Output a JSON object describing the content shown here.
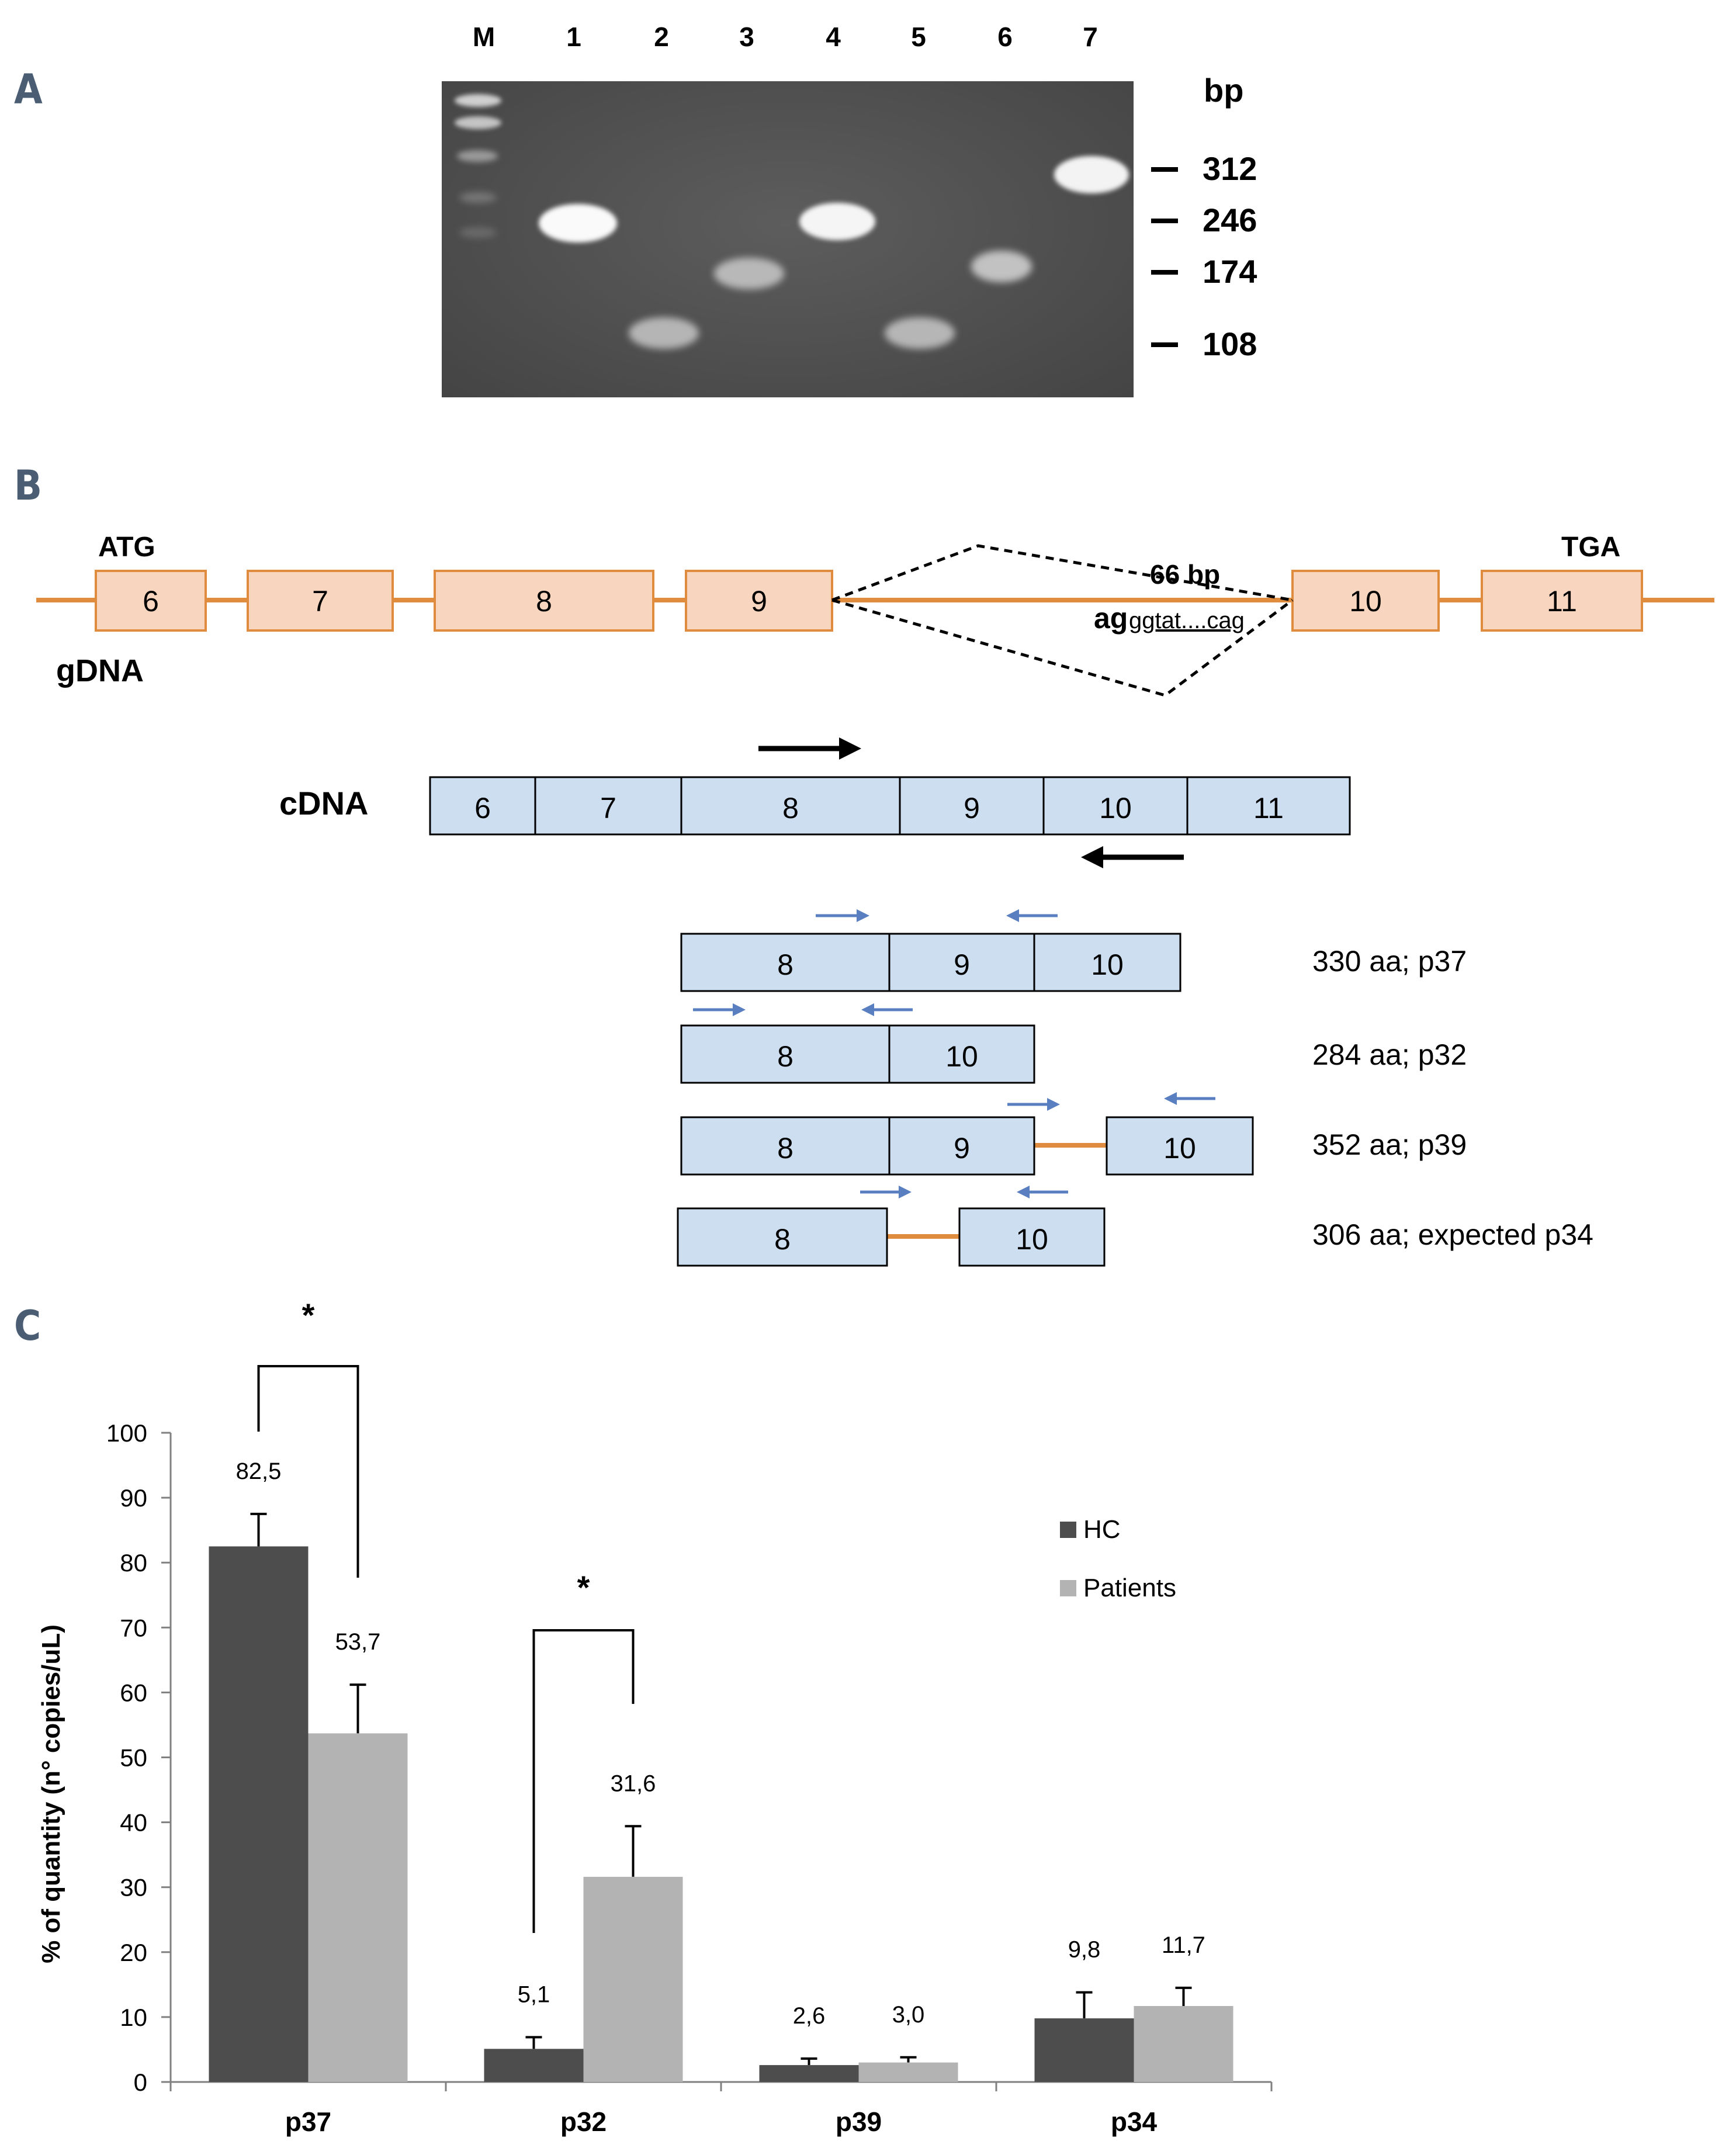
{
  "panels": {
    "a": "A",
    "b": "B",
    "c": "C"
  },
  "gel": {
    "lanes": [
      "M",
      "1",
      "2",
      "3",
      "4",
      "5",
      "6",
      "7"
    ],
    "bp_header": "bp",
    "markers": [
      "312",
      "246",
      "174",
      "108"
    ]
  },
  "gene": {
    "atg": "ATG",
    "tga": "TGA",
    "gdna_label": "gDNA",
    "intron_size": "66 bp",
    "splice_bold": "ag",
    "splice_seq": "ggtat....cag",
    "exons": [
      "6",
      "7",
      "8",
      "9",
      "10",
      "11"
    ],
    "cdna_label": "cDNA",
    "cdna_exons": [
      "6",
      "7",
      "8",
      "9",
      "10",
      "11"
    ],
    "isoforms": [
      {
        "exons": [
          "8",
          "9",
          "10"
        ],
        "label": "330 aa; p37"
      },
      {
        "exons": [
          "8",
          "10"
        ],
        "label": "284 aa; p32"
      },
      {
        "exons": [
          "8",
          "9",
          "10"
        ],
        "label": "352 aa; p39"
      },
      {
        "exons": [
          "8",
          "10"
        ],
        "label": "306 aa; expected p34"
      }
    ]
  },
  "chart_data": {
    "type": "bar",
    "categories": [
      "p37",
      "p32",
      "p39",
      "p34"
    ],
    "series": [
      {
        "name": "HC",
        "values": [
          82.5,
          5.1,
          2.6,
          9.8
        ],
        "labels": [
          "82,5",
          "5,1",
          "2,6",
          "9,8"
        ],
        "errors": [
          5.0,
          1.8,
          1.0,
          4.0
        ],
        "color": "#4d4d4d"
      },
      {
        "name": "Patients",
        "values": [
          53.7,
          31.6,
          3.0,
          11.7
        ],
        "labels": [
          "53,7",
          "31,6",
          "3,0",
          "11,7"
        ],
        "errors": [
          7.5,
          7.8,
          0.8,
          2.8
        ],
        "color": "#b3b3b3"
      }
    ],
    "ylabel": "% of quantity (n° copies/uL)",
    "ylim": [
      0,
      100
    ],
    "yticks": [
      "0",
      "10",
      "20",
      "30",
      "40",
      "50",
      "60",
      "70",
      "80",
      "90",
      "100"
    ],
    "significance": [
      "*",
      "*"
    ],
    "legend_position": "right"
  }
}
